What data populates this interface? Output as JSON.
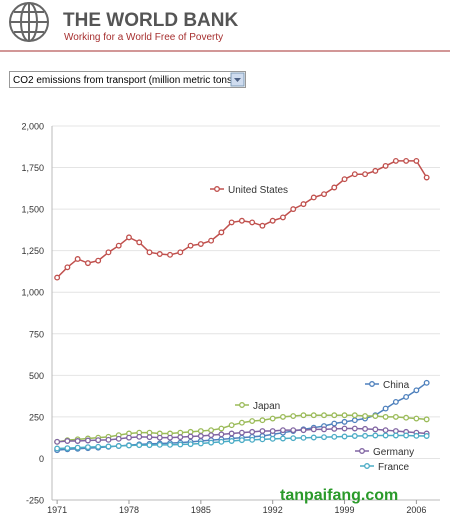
{
  "header": {
    "title": "THE WORLD BANK",
    "subtitle": "Working for a World Free of Poverty"
  },
  "selector": {
    "label": "CO2 emissions from transport (million metric tons)"
  },
  "watermark": "tanpaifang.com",
  "chart_data": {
    "type": "line",
    "x": [
      1971,
      1972,
      1973,
      1974,
      1975,
      1976,
      1977,
      1978,
      1979,
      1980,
      1981,
      1982,
      1983,
      1984,
      1985,
      1986,
      1987,
      1988,
      1989,
      1990,
      1991,
      1992,
      1993,
      1994,
      1995,
      1996,
      1997,
      1998,
      1999,
      2000,
      2001,
      2002,
      2003,
      2004,
      2005,
      2006,
      2007
    ],
    "series": [
      {
        "name": "United States",
        "color": "#c0504d",
        "values": [
          1088,
          1150,
          1200,
          1175,
          1190,
          1240,
          1280,
          1330,
          1300,
          1240,
          1230,
          1225,
          1240,
          1280,
          1290,
          1310,
          1360,
          1420,
          1430,
          1420,
          1400,
          1430,
          1450,
          1500,
          1530,
          1570,
          1590,
          1630,
          1680,
          1710,
          1710,
          1730,
          1760,
          1790,
          1790,
          1790,
          1690
        ]
      },
      {
        "name": "China",
        "color": "#4f81bd",
        "values": [
          50,
          55,
          58,
          62,
          65,
          70,
          75,
          80,
          85,
          88,
          90,
          92,
          95,
          100,
          105,
          110,
          115,
          120,
          125,
          130,
          135,
          145,
          155,
          165,
          175,
          185,
          195,
          210,
          220,
          230,
          240,
          260,
          300,
          340,
          370,
          410,
          455
        ]
      },
      {
        "name": "Japan",
        "color": "#9bbb59",
        "values": [
          100,
          110,
          115,
          120,
          125,
          130,
          140,
          150,
          155,
          155,
          150,
          150,
          155,
          160,
          165,
          170,
          180,
          200,
          215,
          225,
          230,
          240,
          250,
          255,
          260,
          260,
          260,
          260,
          260,
          260,
          255,
          255,
          250,
          250,
          245,
          240,
          235
        ]
      },
      {
        "name": "Germany",
        "color": "#8064a2",
        "values": [
          100,
          105,
          105,
          108,
          110,
          112,
          118,
          125,
          130,
          128,
          125,
          125,
          128,
          132,
          135,
          140,
          145,
          150,
          155,
          160,
          165,
          165,
          170,
          170,
          170,
          175,
          175,
          178,
          180,
          180,
          178,
          175,
          170,
          165,
          160,
          155,
          150
        ]
      },
      {
        "name": "France",
        "color": "#4bacc6",
        "values": [
          60,
          62,
          65,
          68,
          70,
          72,
          75,
          78,
          80,
          80,
          82,
          82,
          84,
          86,
          90,
          95,
          100,
          105,
          110,
          112,
          115,
          118,
          120,
          122,
          124,
          126,
          128,
          130,
          132,
          135,
          136,
          138,
          138,
          138,
          138,
          136,
          135
        ]
      }
    ],
    "xlim": [
      1970.5,
      2008.3
    ],
    "ylim": [
      -250,
      2000
    ],
    "xticks": [
      1971,
      1978,
      1985,
      1992,
      1999,
      2006
    ],
    "yticks": [
      -250,
      0,
      250,
      500,
      750,
      {
        "value": 1000,
        "label": "1,000"
      },
      {
        "value": 1250,
        "label": "1,250"
      },
      {
        "value": 1500,
        "label": "1,500"
      },
      {
        "value": 1750,
        "label": "1,750"
      },
      {
        "value": 2000,
        "label": "2,000"
      }
    ],
    "grid": true
  }
}
